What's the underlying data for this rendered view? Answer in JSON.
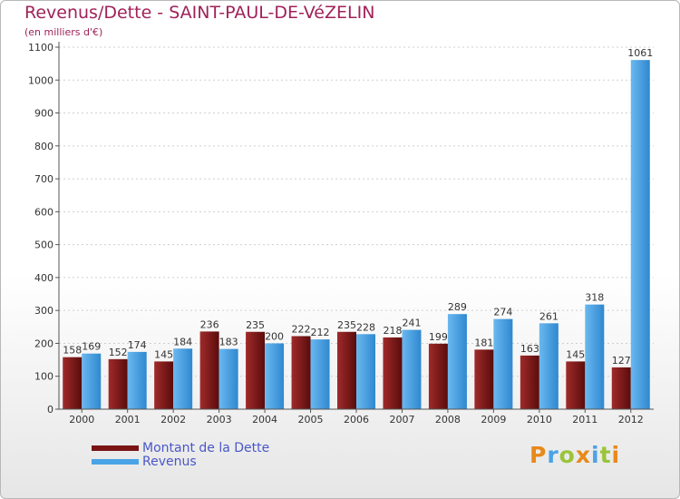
{
  "chart_data": {
    "type": "bar",
    "title": "Revenus/Dette - SAINT-PAUL-DE-VéZELIN",
    "subtitle": "(en milliers d'€)",
    "categories": [
      "2000",
      "2001",
      "2002",
      "2003",
      "2004",
      "2005",
      "2006",
      "2007",
      "2008",
      "2009",
      "2010",
      "2011",
      "2012"
    ],
    "series": [
      {
        "name": "Montant de la Dette",
        "color": "#7a1414",
        "values": [
          158,
          152,
          145,
          236,
          235,
          222,
          235,
          218,
          199,
          181,
          163,
          145,
          127
        ]
      },
      {
        "name": "Revenus",
        "color": "#4aa3e6",
        "values": [
          169,
          174,
          184,
          183,
          200,
          212,
          228,
          241,
          289,
          274,
          261,
          318,
          1061
        ]
      }
    ],
    "ylim": [
      0,
      1100
    ],
    "yticks": [
      0,
      100,
      200,
      300,
      400,
      500,
      600,
      700,
      800,
      900,
      1000,
      1100
    ],
    "grid": true,
    "legend": "bottom-left"
  },
  "logo": {
    "text": "Proxiti",
    "colors": [
      "#e8891a",
      "#4aa3e6",
      "#9ac43a",
      "#e8891a",
      "#4aa3e6",
      "#9ac43a",
      "#e8891a"
    ]
  }
}
